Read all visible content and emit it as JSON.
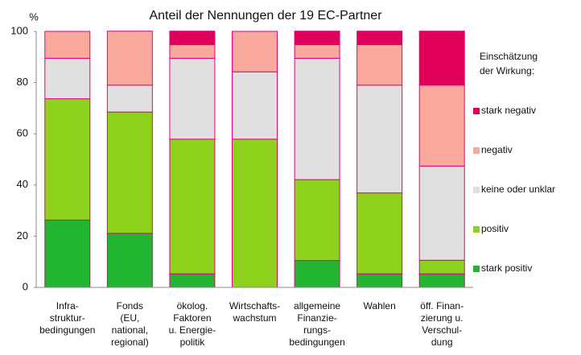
{
  "chart_data": {
    "type": "stacked_bar",
    "title": "Anteil der Nennungen der 19 EC-Partner",
    "y_label": "%",
    "legend_title": [
      "Einschätzung",
      "der Wirkung:"
    ],
    "categories": [
      [
        "Infra-",
        "struktur-",
        "bedingungen"
      ],
      [
        "Fonds",
        "(EU,",
        "national,",
        "regional)"
      ],
      [
        "ökolog.",
        "Faktoren",
        "u. Energie-",
        "politik"
      ],
      [
        "Wirtschafts-",
        "wachstum"
      ],
      [
        "allgemeine",
        "Finanzie-",
        "rungs-",
        "bedingungen"
      ],
      [
        "Wahlen"
      ],
      [
        "öff. Finan-",
        "zierung u.",
        "Verschul-",
        "dung"
      ]
    ],
    "series": [
      {
        "name": "stark positiv",
        "color": "#22b532",
        "values": [
          26.3,
          21.1,
          5.3,
          0,
          10.5,
          5.3,
          5.3
        ]
      },
      {
        "name": "positiv",
        "color": "#8fd21e",
        "values": [
          47.4,
          47.4,
          52.6,
          57.9,
          31.6,
          31.6,
          5.3
        ]
      },
      {
        "name": "keine oder unklar",
        "color": "#e0e0e0",
        "values": [
          15.8,
          10.5,
          31.6,
          26.3,
          47.4,
          42.1,
          36.8
        ]
      },
      {
        "name": "negativ",
        "color": "#f9a99b",
        "values": [
          10.5,
          21.1,
          5.3,
          15.8,
          5.3,
          15.8,
          31.6
        ]
      },
      {
        "name": "stark negativ",
        "color": "#e0005a",
        "values": [
          0,
          0,
          5.3,
          0,
          5.3,
          5.3,
          21.1
        ]
      }
    ],
    "ylim": [
      0,
      100
    ],
    "yticks": [
      0,
      20,
      40,
      60,
      80,
      100
    ],
    "grid": false,
    "legend": "right"
  }
}
